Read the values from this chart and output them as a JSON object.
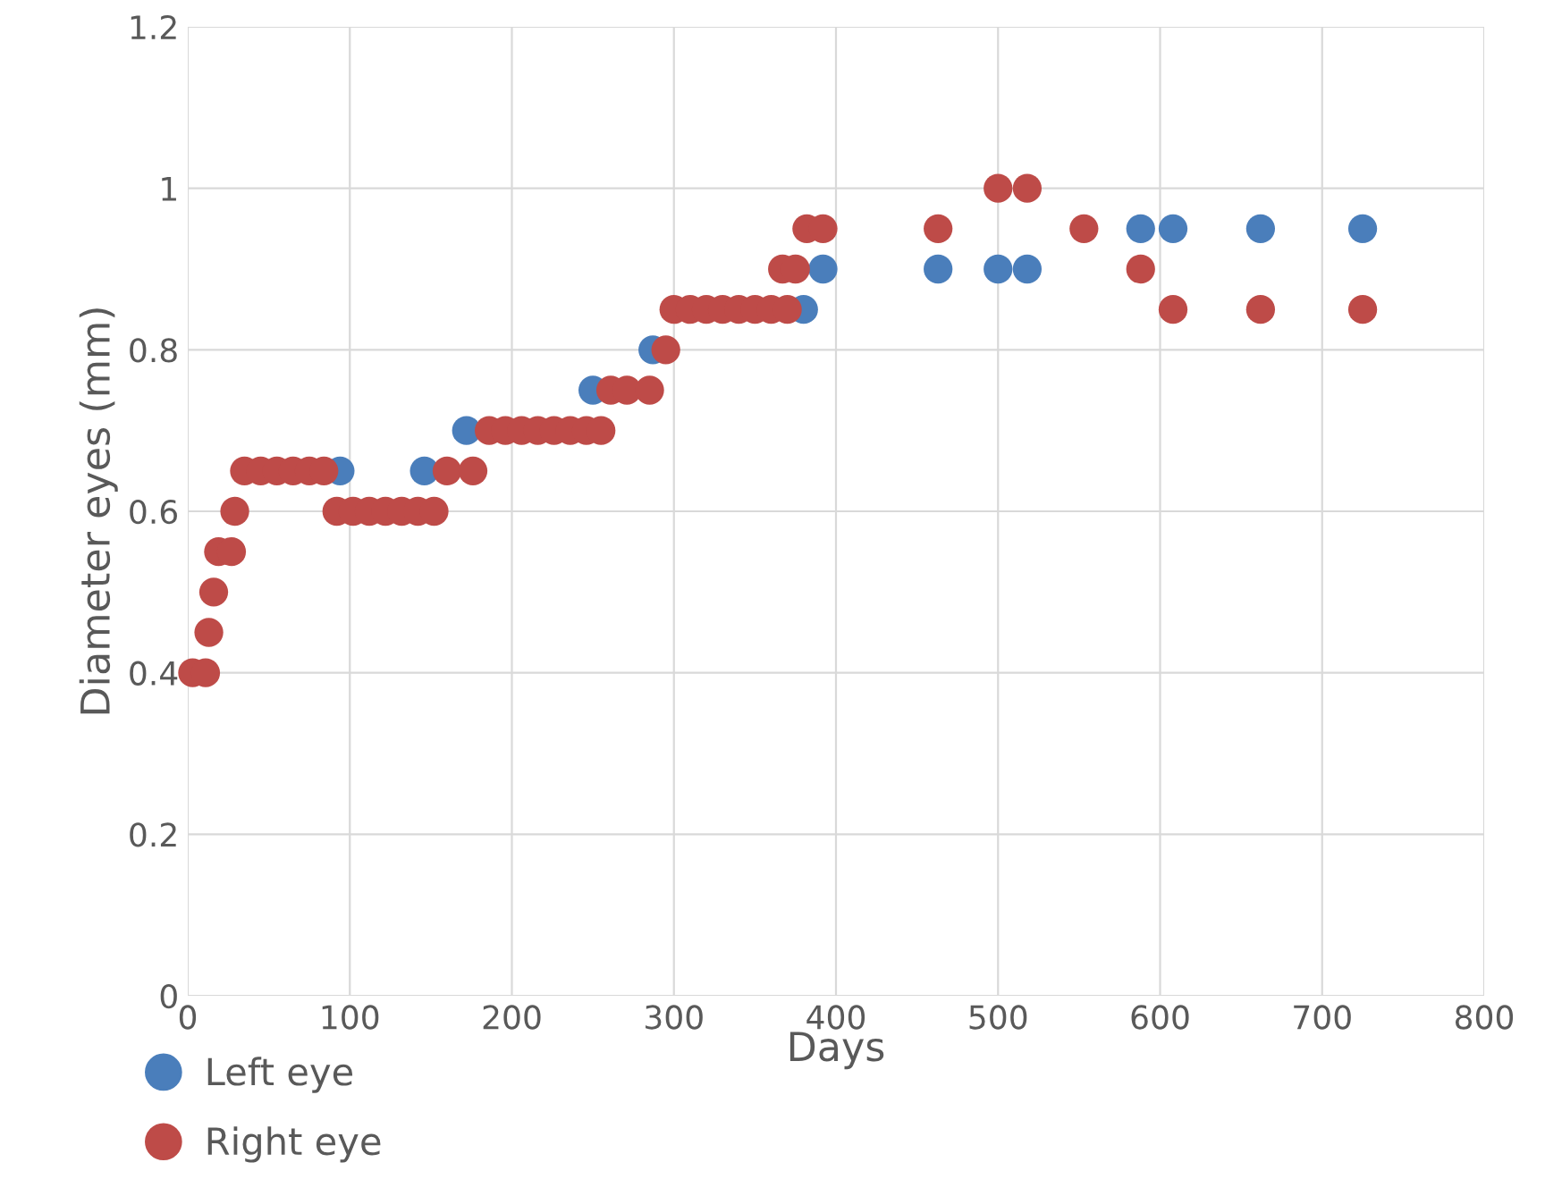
{
  "chart_data": {
    "type": "scatter",
    "xlabel": "Days",
    "ylabel": "Diameter eyes (mm)",
    "xlim": [
      0,
      800
    ],
    "xticks": [
      0,
      100,
      200,
      300,
      400,
      500,
      600,
      700,
      800
    ],
    "ylim": [
      0,
      1.2
    ],
    "yticks": [
      0,
      0.2,
      0.4,
      0.6,
      0.8,
      1,
      1.2
    ],
    "grid": true,
    "legend": "bottom left",
    "marker": "circle",
    "series": [
      {
        "name": "Left eye",
        "color": "#4a7ebb",
        "x": [
          94,
          146,
          172,
          250,
          287,
          380,
          392,
          463,
          500,
          518,
          588,
          608,
          662,
          725
        ],
        "values": [
          0.65,
          0.65,
          0.7,
          0.75,
          0.8,
          0.85,
          0.9,
          0.9,
          0.9,
          0.9,
          0.95,
          0.95,
          0.95,
          0.95
        ]
      },
      {
        "name": "Right eye",
        "color": "#be4b48",
        "x": [
          3,
          11,
          13,
          16,
          19,
          27,
          29,
          35,
          45,
          55,
          65,
          75,
          84,
          92,
          102,
          112,
          122,
          132,
          142,
          152,
          160,
          176,
          186,
          196,
          206,
          216,
          226,
          236,
          246,
          255,
          261,
          271,
          285,
          295,
          300,
          310,
          320,
          330,
          340,
          350,
          360,
          370,
          367,
          375,
          382,
          392,
          463,
          500,
          518,
          553,
          588,
          608,
          662,
          725
        ],
        "values": [
          0.4,
          0.4,
          0.45,
          0.5,
          0.55,
          0.55,
          0.6,
          0.65,
          0.65,
          0.65,
          0.65,
          0.65,
          0.65,
          0.6,
          0.6,
          0.6,
          0.6,
          0.6,
          0.6,
          0.6,
          0.65,
          0.65,
          0.7,
          0.7,
          0.7,
          0.7,
          0.7,
          0.7,
          0.7,
          0.7,
          0.75,
          0.75,
          0.75,
          0.8,
          0.85,
          0.85,
          0.85,
          0.85,
          0.85,
          0.85,
          0.85,
          0.85,
          0.9,
          0.9,
          0.95,
          0.95,
          0.95,
          1,
          1,
          0.95,
          0.9,
          0.85,
          0.85,
          0.85
        ]
      }
    ]
  }
}
